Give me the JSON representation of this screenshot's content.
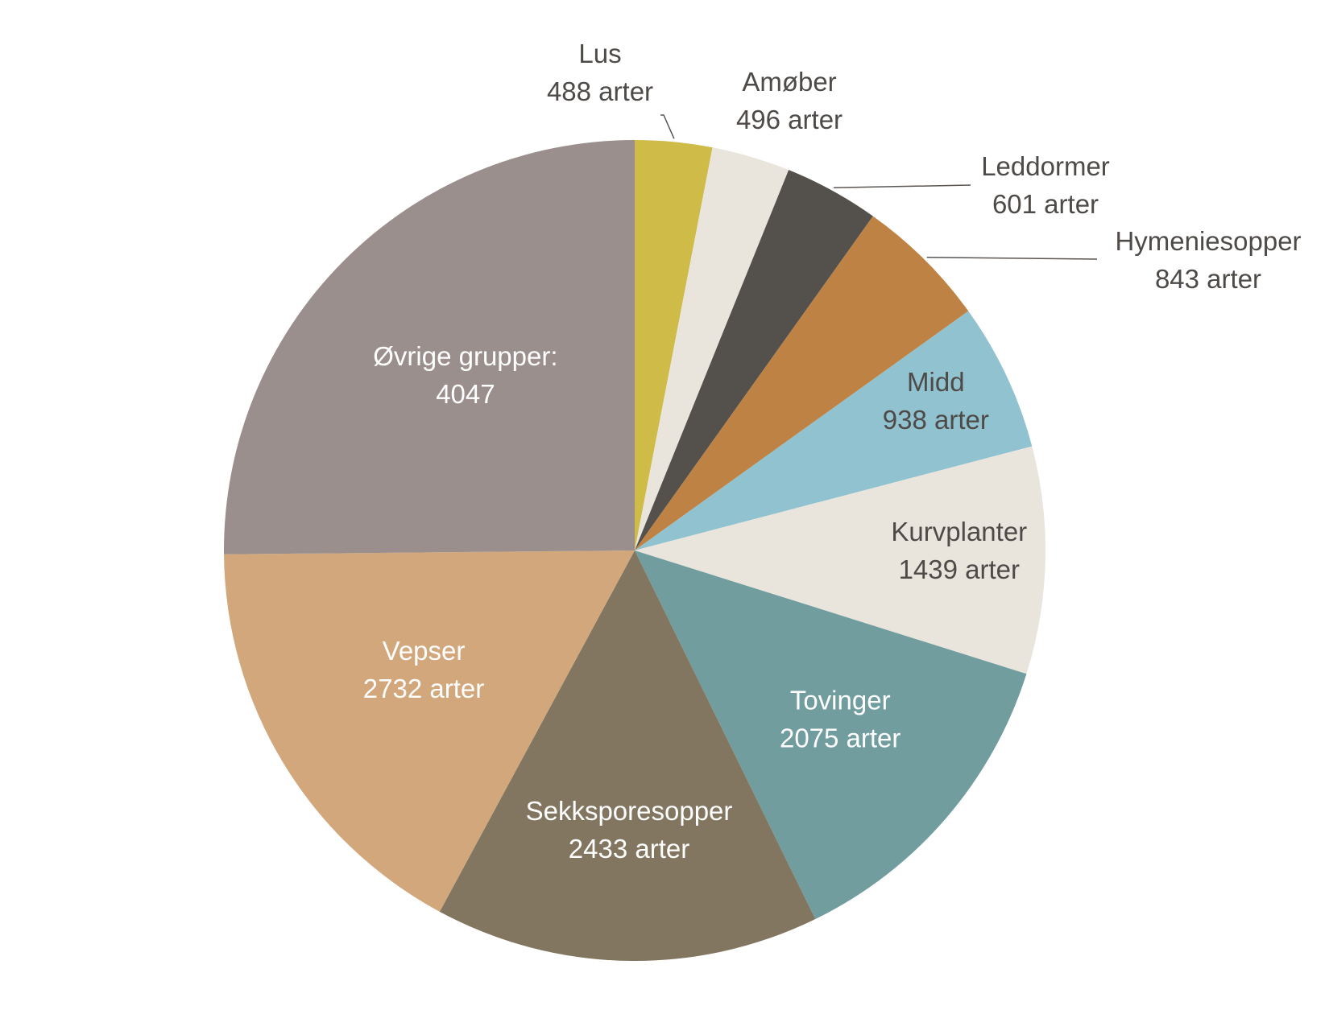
{
  "chart_data": {
    "type": "pie",
    "start_angle_deg": 0,
    "direction": "clockwise",
    "slices": [
      {
        "name": "Lus",
        "value": 488,
        "value_label": "488 arter",
        "color": "#CFBB48",
        "label_style": "outside-dark"
      },
      {
        "name": "Amøber",
        "value": 496,
        "value_label": "496 arter",
        "color": "#E9E5DD",
        "label_style": "outside-dark"
      },
      {
        "name": "Leddormer",
        "value": 601,
        "value_label": "601 arter",
        "color": "#54504C",
        "label_style": "outside-dark"
      },
      {
        "name": "Hymeniesopper",
        "value": 843,
        "value_label": "843 arter",
        "color": "#BE8344",
        "label_style": "outside-dark"
      },
      {
        "name": "Midd",
        "value": 938,
        "value_label": "938 arter",
        "color": "#91C2D0",
        "label_style": "inside-dark"
      },
      {
        "name": "Kurvplanter",
        "value": 1439,
        "value_label": "1439 arter",
        "color": "#E9E5DD",
        "label_style": "inside-dark"
      },
      {
        "name": "Tovinger",
        "value": 2075,
        "value_label": "2075 arter",
        "color": "#719D9F",
        "label_style": "inside-light"
      },
      {
        "name": "Sekksporesopper",
        "value": 2433,
        "value_label": "2433 arter",
        "color": "#827660",
        "label_style": "inside-light"
      },
      {
        "name": "Vepser",
        "value": 2732,
        "value_label": "2732 arter",
        "color": "#D1A77B",
        "label_style": "inside-light"
      },
      {
        "name": "Øvrige grupper:",
        "value": 4047,
        "value_label": "4047",
        "color": "#9A8F8C",
        "label_style": "inside-light"
      }
    ]
  }
}
